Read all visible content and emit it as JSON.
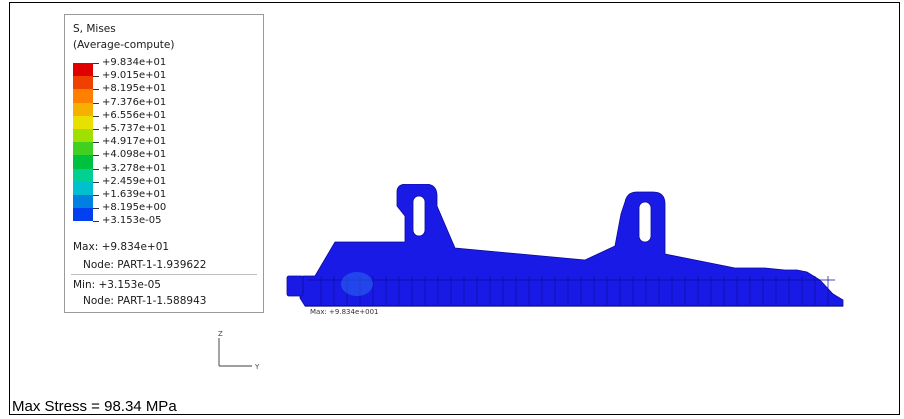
{
  "legend": {
    "title": "S, Mises",
    "subtitle": "(Average-compute)",
    "levels": [
      {
        "value": "+9.834e+01",
        "color": "#e00000"
      },
      {
        "value": "+9.015e+01",
        "color": "#f04000"
      },
      {
        "value": "+8.195e+01",
        "color": "#ff8000"
      },
      {
        "value": "+7.376e+01",
        "color": "#f5b000"
      },
      {
        "value": "+6.556e+01",
        "color": "#e8e000"
      },
      {
        "value": "+5.737e+01",
        "color": "#a0e000"
      },
      {
        "value": "+4.917e+01",
        "color": "#40d020"
      },
      {
        "value": "+4.098e+01",
        "color": "#00c040"
      },
      {
        "value": "+3.278e+01",
        "color": "#00d090"
      },
      {
        "value": "+2.459e+01",
        "color": "#00c0d0"
      },
      {
        "value": "+1.639e+01",
        "color": "#0080e0"
      },
      {
        "value": "+8.195e+00",
        "color": "#0040f0"
      },
      {
        "value": "+3.153e-05",
        "color": "#0000e0"
      }
    ],
    "max_label": "Max: +9.834e+01",
    "max_node": "Node: PART-1-1.939622",
    "min_label": "Min: +3.153e-05",
    "min_node": "Node: PART-1-1.588943"
  },
  "triad": {
    "z": "Z",
    "y": "Y"
  },
  "viewport": {
    "max_marker": "Max: +9.834e+001",
    "model_color": "#1a1ae6"
  },
  "caption": "Max Stress = 98.34 MPa"
}
